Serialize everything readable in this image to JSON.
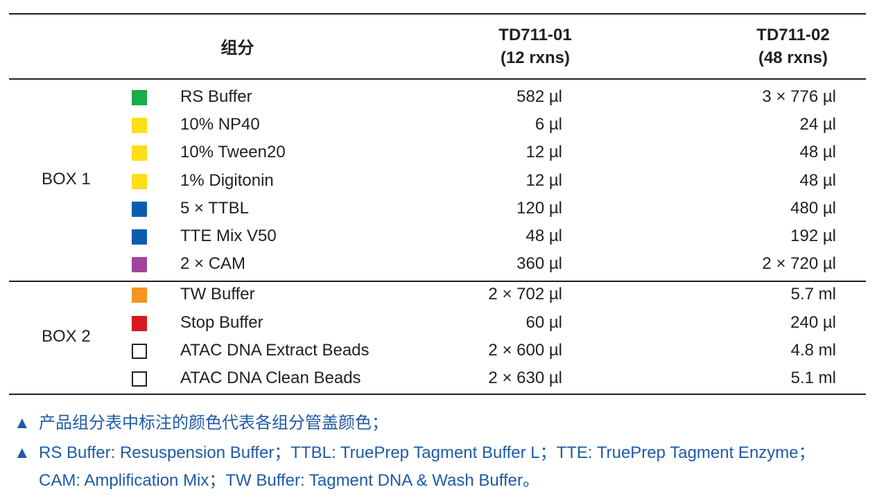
{
  "header": {
    "component": "组分",
    "col1_line1": "TD711-01",
    "col1_line2": "(12 rxns)",
    "col2_line1": "TD711-02",
    "col2_line2": "(48 rxns)"
  },
  "boxes": [
    {
      "label": "BOX 1",
      "rows": [
        {
          "name": "RS Buffer",
          "v1": "582 µl",
          "v2": "3 × 776 µl",
          "color": "#1aab4a"
        },
        {
          "name": "10% NP40",
          "v1": "6 µl",
          "v2": "24 µl",
          "color": "#ffde17"
        },
        {
          "name": "10% Tween20",
          "v1": "12 µl",
          "v2": "48 µl",
          "color": "#ffde17"
        },
        {
          "name": "1% Digitonin",
          "v1": "12 µl",
          "v2": "48 µl",
          "color": "#ffde17"
        },
        {
          "name": "5 × TTBL",
          "v1": "120 µl",
          "v2": "480 µl",
          "color": "#0b5cad"
        },
        {
          "name": "TTE Mix V50",
          "v1": "48 µl",
          "v2": "192 µl",
          "color": "#0b5cad"
        },
        {
          "name": "2 × CAM",
          "v1": "360 µl",
          "v2": "2 × 720 µl",
          "color": "#a2449b"
        }
      ]
    },
    {
      "label": "BOX 2",
      "rows": [
        {
          "name": "TW Buffer",
          "v1": "2 × 702 µl",
          "v2": "5.7 ml",
          "color": "#f7941d"
        },
        {
          "name": "Stop Buffer",
          "v1": "60 µl",
          "v2": "240 µl",
          "color": "#d7191f"
        },
        {
          "name": "ATAC DNA Extract Beads",
          "v1": "2 × 600 µl",
          "v2": "4.8 ml",
          "color": "none"
        },
        {
          "name": "ATAC DNA Clean Beads",
          "v1": "2 × 630 µl",
          "v2": "5.1 ml",
          "color": "none"
        }
      ]
    }
  ],
  "notes": {
    "bullet": "▲",
    "note1": "产品组分表中标注的颜色代表各组分管盖颜色；",
    "note2_line1": "RS Buffer: Resuspension Buffer；TTBL: TruePrep Tagment Buffer L；TTE: TruePrep Tagment Enzyme；",
    "note2_line2": "CAM: Amplification Mix；TW Buffer: Tagment DNA & Wash Buffer。"
  }
}
